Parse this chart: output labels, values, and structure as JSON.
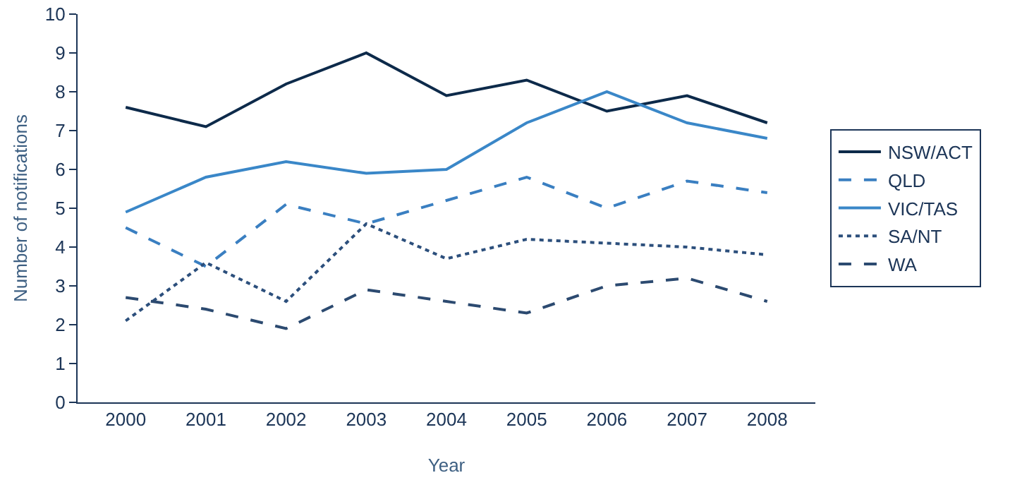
{
  "chart_data": {
    "type": "line",
    "xlabel": "Year",
    "ylabel": "Number of notifications",
    "categories": [
      "2000",
      "2001",
      "2002",
      "2003",
      "2004",
      "2005",
      "2006",
      "2007",
      "2008"
    ],
    "series": [
      {
        "name": "NSW/ACT",
        "color": "#0d2a4a",
        "line_style": "solid",
        "values": [
          7.6,
          7.1,
          8.2,
          9.0,
          7.9,
          8.3,
          7.5,
          7.9,
          7.2
        ]
      },
      {
        "name": "QLD",
        "color": "#3a7fc1",
        "line_style": "dashed",
        "values": [
          4.5,
          3.5,
          5.1,
          4.6,
          5.2,
          5.8,
          5.0,
          5.7,
          5.4
        ]
      },
      {
        "name": "VIC/TAS",
        "color": "#3a87c8",
        "line_style": "solid",
        "values": [
          4.9,
          5.8,
          6.2,
          5.9,
          6.0,
          7.2,
          8.0,
          7.2,
          6.8
        ]
      },
      {
        "name": "SA/NT",
        "color": "#2c4f7c",
        "line_style": "dotted",
        "values": [
          2.1,
          3.6,
          2.6,
          4.6,
          3.7,
          4.2,
          4.1,
          4.0,
          3.8
        ]
      },
      {
        "name": "WA",
        "color": "#2c4a70",
        "line_style": "dashed",
        "values": [
          2.7,
          2.4,
          1.9,
          2.9,
          2.6,
          2.3,
          3.0,
          3.2,
          2.6
        ]
      }
    ],
    "ylim": [
      0,
      10
    ],
    "yticks": [
      0,
      1,
      2,
      3,
      4,
      5,
      6,
      7,
      8,
      9,
      10
    ],
    "grid": false,
    "legend": "right",
    "marker": "none"
  }
}
